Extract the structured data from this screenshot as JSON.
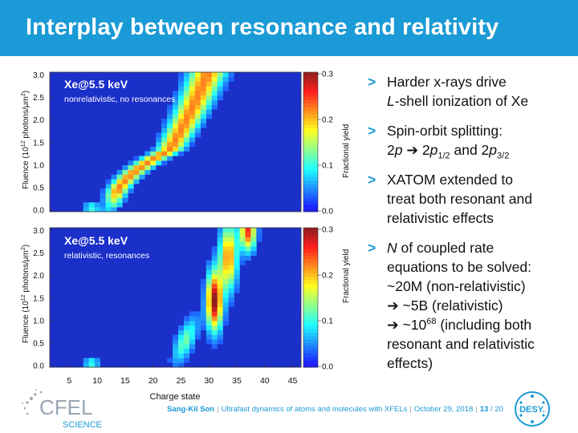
{
  "header": {
    "title": "Interplay between resonance and relativity"
  },
  "plots": {
    "top": {
      "title": "Xe@5.5 keV",
      "subtitle": "nonrelativistic, no resonances",
      "ylabel_a": "Fluence (10",
      "ylabel_sup": "12",
      "ylabel_b": " photons/μm",
      "ylabel_sup2": "2",
      "ylabel_c": ")",
      "yticks": [
        "0.0",
        "0.5",
        "1.0",
        "1.5",
        "2.0",
        "2.5",
        "3.0"
      ],
      "cbar_ticks": [
        "0.0",
        "0.1",
        "0.2",
        "0.3"
      ],
      "cbar_label": "Fractional yield"
    },
    "bottom": {
      "title": "Xe@5.5 keV",
      "subtitle": "relativistic, resonances",
      "ylabel_a": "Fluence (10",
      "ylabel_sup": "12",
      "ylabel_b": " photons/μm",
      "ylabel_sup2": "2",
      "ylabel_c": ")",
      "yticks": [
        "0.0",
        "0.5",
        "1.0",
        "1.5",
        "2.0",
        "2.5",
        "3.0"
      ],
      "cbar_ticks": [
        "0.0",
        "0.1",
        "0.2",
        "0.3"
      ],
      "cbar_label": "Fractional yield"
    },
    "xticks": [
      "5",
      "10",
      "15",
      "20",
      "25",
      "30",
      "35",
      "40",
      "45"
    ],
    "xlabel": "Charge state"
  },
  "bullets": {
    "b1_l1": "Harder x-rays drive",
    "b1_l2_i": "L",
    "b1_l2": "-shell ionization of Xe",
    "b2_l1": "Spin-orbit splitting:",
    "b2_l2_a": "2",
    "b2_l2_p": "p",
    "b2_l2_arrow": " ➔ ",
    "b2_l2_b": "2",
    "b2_l2_p2": "p",
    "b2_l2_sub1": "1/2",
    "b2_l2_and": " and 2",
    "b2_l2_p3": "p",
    "b2_l2_sub2": "3/2",
    "b3_l1": "XATOM extended to",
    "b3_l2": "treat both resonant and",
    "b3_l3": "relativistic effects",
    "b4_l1_i": "N",
    "b4_l1": " of coupled rate",
    "b4_l2": "equations to be solved:",
    "b4_l3": "~20M (non-relativistic)",
    "b4_l4": "➔ ~5B (relativistic)",
    "b4_l5_a": "➔ ~10",
    "b4_l5_sup": "68",
    "b4_l5_b": " (including both",
    "b4_l6": "resonant and relativistic",
    "b4_l7": "effects)"
  },
  "footer": {
    "author": "Sang-Kil Son",
    "talk": "Ultrafast dynamics of atoms and molecules with XFELs",
    "date": "October 29, 2018",
    "page": "13",
    "total": "/ 20",
    "bar": "|"
  },
  "logos": {
    "cfel_main": "CFEL",
    "cfel_sub": "SCIENCE",
    "desy": "DESY."
  }
}
